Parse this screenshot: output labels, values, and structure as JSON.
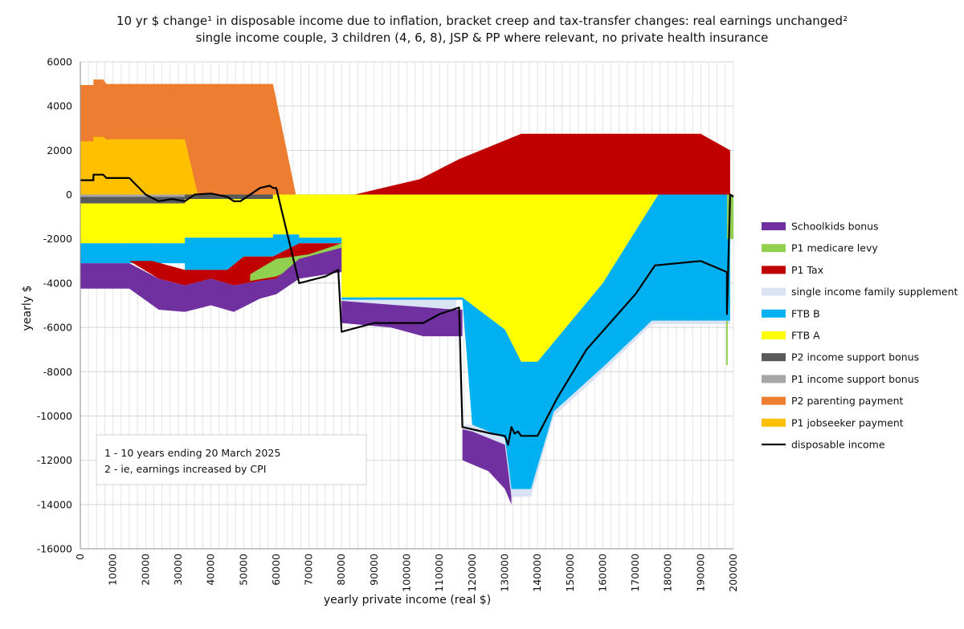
{
  "chart_data": {
    "type": "area",
    "title_line1": "10 yr $ change¹ in disposable income due to inflation, bracket creep and tax-transfer changes: real earnings unchanged²",
    "title_line2": "single income couple, 3 children (4, 6, 8), JSP & PP where relevant, no private health insurance",
    "xlabel": "yearly private income (real $)",
    "ylabel": "yearly $",
    "xlim": [
      0,
      200000
    ],
    "ylim": [
      -16000,
      6000
    ],
    "x_ticks": [
      "0",
      "10000",
      "20000",
      "30000",
      "40000",
      "50000",
      "60000",
      "70000",
      "80000",
      "90000",
      "100000",
      "110000",
      "120000",
      "130000",
      "140000",
      "150000",
      "160000",
      "170000",
      "180000",
      "190000",
      "200000"
    ],
    "y_ticks": [
      "6000",
      "4000",
      "2000",
      "0",
      "-2000",
      "-4000",
      "-6000",
      "-8000",
      "-10000",
      "-12000",
      "-14000",
      "-16000"
    ],
    "grid": true,
    "legend_position": "right",
    "notes": [
      "1 - 10 years ending 20 March 2025",
      "2 - ie, earnings increased by CPI"
    ],
    "series": [
      {
        "name": "Schoolkids bonus",
        "color": "#7030a0"
      },
      {
        "name": "P1 medicare levy",
        "color": "#92d050"
      },
      {
        "name": "P1 Tax",
        "color": "#c00000"
      },
      {
        "name": "single income family supplement",
        "color": "#dae3f3"
      },
      {
        "name": "FTB B",
        "color": "#00b0f0"
      },
      {
        "name": "FTB A",
        "color": "#ffff00"
      },
      {
        "name": "P2 income support bonus",
        "color": "#595959"
      },
      {
        "name": "P1 income support bonus",
        "color": "#a6a6a6"
      },
      {
        "name": "P2 parenting payment",
        "color": "#ed7d31"
      },
      {
        "name": "P1 jobseeker payment",
        "color": "#ffc000"
      },
      {
        "name": "disposable income",
        "color": "#000000"
      }
    ],
    "areas": [
      {
        "series": "P2 parenting payment",
        "upper": [
          [
            0,
            4950
          ],
          [
            4000,
            4950
          ],
          [
            4000,
            5200
          ],
          [
            7000,
            5200
          ],
          [
            8000,
            5000
          ],
          [
            59000,
            5000
          ],
          [
            66000,
            0
          ]
        ],
        "lower": [
          [
            0,
            0
          ],
          [
            66000,
            0
          ]
        ]
      },
      {
        "series": "P1 jobseeker payment",
        "upper": [
          [
            0,
            2400
          ],
          [
            4000,
            2400
          ],
          [
            4000,
            2600
          ],
          [
            7000,
            2600
          ],
          [
            8000,
            2500
          ],
          [
            32000,
            2500
          ],
          [
            36000,
            0
          ]
        ],
        "lower": [
          [
            0,
            0
          ],
          [
            36000,
            0
          ]
        ]
      },
      {
        "series": "P1 income support bonus",
        "upper": [
          [
            0,
            0
          ],
          [
            59000,
            0
          ]
        ],
        "lower": [
          [
            0,
            -100
          ],
          [
            59000,
            -100
          ]
        ]
      },
      {
        "series": "P2 income support bonus",
        "upper": [
          [
            0,
            -100
          ],
          [
            32000,
            -100
          ],
          [
            32000,
            0
          ],
          [
            59000,
            0
          ]
        ],
        "lower": [
          [
            0,
            -400
          ],
          [
            32000,
            -400
          ],
          [
            32000,
            -200
          ],
          [
            59000,
            -200
          ]
        ]
      },
      {
        "series": "FTB A",
        "upper": [
          [
            0,
            -400
          ],
          [
            32000,
            -400
          ],
          [
            32000,
            -200
          ],
          [
            59000,
            -200
          ],
          [
            59000,
            0
          ],
          [
            65000,
            0
          ],
          [
            80000,
            0
          ],
          [
            115000,
            0
          ],
          [
            177000,
            0
          ]
        ],
        "lower": [
          [
            0,
            -2200
          ],
          [
            32000,
            -2200
          ],
          [
            32000,
            -1950
          ],
          [
            59000,
            -1950
          ],
          [
            59000,
            -1800
          ],
          [
            67000,
            -1800
          ],
          [
            67000,
            -1950
          ],
          [
            80000,
            -1950
          ],
          [
            80000,
            -4650
          ],
          [
            117000,
            -4650
          ],
          [
            130000,
            -6100
          ],
          [
            135000,
            -7550
          ],
          [
            140000,
            -7550
          ],
          [
            160000,
            -4000
          ],
          [
            177000,
            0
          ]
        ]
      },
      {
        "series": "FTB B",
        "upper": [
          [
            0,
            -2200
          ],
          [
            32000,
            -2200
          ],
          [
            32000,
            -1950
          ],
          [
            59000,
            -1950
          ],
          [
            59000,
            -1800
          ],
          [
            67000,
            -1800
          ],
          [
            67000,
            -1950
          ],
          [
            80000,
            -1950
          ],
          [
            80000,
            -4650
          ],
          [
            117000,
            -4650
          ],
          [
            130000,
            -6100
          ],
          [
            135000,
            -7550
          ],
          [
            140000,
            -7550
          ],
          [
            160000,
            -4000
          ],
          [
            177000,
            0
          ],
          [
            199000,
            0
          ]
        ],
        "lower": [
          [
            0,
            -3100
          ],
          [
            32000,
            -3100
          ],
          [
            32000,
            -3400
          ],
          [
            45000,
            -3400
          ],
          [
            50000,
            -2800
          ],
          [
            59000,
            -2800
          ],
          [
            67000,
            -2200
          ],
          [
            80000,
            -2200
          ],
          [
            80000,
            -4750
          ],
          [
            117000,
            -4750
          ],
          [
            120000,
            -10400
          ],
          [
            130000,
            -11000
          ],
          [
            132000,
            -13300
          ],
          [
            138000,
            -13300
          ],
          [
            145000,
            -9800
          ],
          [
            160000,
            -7800
          ],
          [
            175000,
            -5700
          ],
          [
            199000,
            -5700
          ],
          [
            199000,
            0
          ]
        ]
      },
      {
        "series": "single income family supplement",
        "upper": [
          [
            80000,
            -4750
          ],
          [
            115000,
            -4750
          ],
          [
            117000,
            -10400
          ],
          [
            120000,
            -10400
          ],
          [
            130000,
            -11000
          ],
          [
            132000,
            -13300
          ],
          [
            138000,
            -13300
          ],
          [
            145000,
            -9800
          ],
          [
            160000,
            -7800
          ],
          [
            175000,
            -5700
          ],
          [
            199000,
            -5700
          ]
        ],
        "lower": [
          [
            80000,
            -4800
          ],
          [
            115000,
            -5200
          ],
          [
            117000,
            -10600
          ],
          [
            120000,
            -10700
          ],
          [
            130000,
            -11300
          ],
          [
            132000,
            -13650
          ],
          [
            138000,
            -13650
          ],
          [
            145000,
            -10000
          ],
          [
            160000,
            -8000
          ],
          [
            175000,
            -5850
          ],
          [
            199000,
            -5850
          ]
        ]
      },
      {
        "series": "P1 Tax",
        "upper": [
          [
            84000,
            0
          ],
          [
            104000,
            700
          ],
          [
            116000,
            1600
          ],
          [
            135000,
            2750
          ],
          [
            190000,
            2750
          ],
          [
            199000,
            2000
          ]
        ],
        "lower": [
          [
            84000,
            0
          ],
          [
            199000,
            0
          ]
        ]
      },
      {
        "series": "P1 Tax",
        "upper": [
          [
            15000,
            -3000
          ],
          [
            22000,
            -3000
          ],
          [
            32000,
            -3400
          ],
          [
            45000,
            -3400
          ],
          [
            50000,
            -2800
          ],
          [
            59000,
            -2800
          ],
          [
            67000,
            -2200
          ],
          [
            80000,
            -2200
          ]
        ],
        "lower": [
          [
            15000,
            -3000
          ],
          [
            24000,
            -3800
          ],
          [
            32000,
            -4100
          ],
          [
            40000,
            -3800
          ],
          [
            47000,
            -4100
          ],
          [
            55000,
            -3900
          ],
          [
            60000,
            -3800
          ],
          [
            67000,
            -2900
          ],
          [
            80000,
            -2400
          ]
        ]
      },
      {
        "series": "P1 medicare levy",
        "upper": [
          [
            52000,
            -3600
          ],
          [
            60000,
            -2900
          ],
          [
            70000,
            -2700
          ],
          [
            80000,
            -2200
          ]
        ],
        "lower": [
          [
            52000,
            -3900
          ],
          [
            60000,
            -3700
          ],
          [
            70000,
            -3000
          ],
          [
            80000,
            -2500
          ]
        ]
      },
      {
        "series": "P1 medicare levy",
        "upper": [
          [
            198000,
            0
          ],
          [
            200000,
            0
          ]
        ],
        "lower": [
          [
            198000,
            -2000
          ],
          [
            200000,
            -2000
          ]
        ]
      },
      {
        "series": "Schoolkids bonus",
        "upper": [
          [
            0,
            -3100
          ],
          [
            15000,
            -3100
          ],
          [
            24000,
            -3800
          ],
          [
            32000,
            -4100
          ],
          [
            40000,
            -3800
          ],
          [
            47000,
            -4100
          ],
          [
            55000,
            -3900
          ],
          [
            60000,
            -3800
          ],
          [
            67000,
            -2900
          ],
          [
            80000,
            -2400
          ]
        ],
        "lower": [
          [
            0,
            -4250
          ],
          [
            15000,
            -4250
          ],
          [
            24000,
            -5200
          ],
          [
            32000,
            -5300
          ],
          [
            40000,
            -5000
          ],
          [
            47000,
            -5300
          ],
          [
            55000,
            -4700
          ],
          [
            60000,
            -4500
          ],
          [
            67000,
            -3800
          ],
          [
            80000,
            -3500
          ]
        ]
      },
      {
        "series": "Schoolkids bonus",
        "upper": [
          [
            80000,
            -4800
          ],
          [
            115000,
            -5200
          ],
          [
            117000,
            -5200
          ]
        ],
        "lower": [
          [
            80000,
            -5800
          ],
          [
            95000,
            -6000
          ],
          [
            105000,
            -6400
          ],
          [
            117000,
            -6400
          ]
        ]
      },
      {
        "series": "Schoolkids bonus",
        "upper": [
          [
            117000,
            -10600
          ],
          [
            120000,
            -10700
          ],
          [
            130000,
            -11300
          ],
          [
            132000,
            -13650
          ]
        ],
        "lower": [
          [
            117000,
            -12000
          ],
          [
            125000,
            -12500
          ],
          [
            130000,
            -13300
          ],
          [
            132000,
            -14000
          ]
        ]
      }
    ],
    "lines": [
      {
        "series": "disposable income",
        "points": [
          [
            0,
            650
          ],
          [
            4000,
            650
          ],
          [
            4000,
            900
          ],
          [
            7000,
            900
          ],
          [
            8000,
            750
          ],
          [
            15000,
            750
          ],
          [
            20000,
            0
          ],
          [
            24000,
            -300
          ],
          [
            28000,
            -200
          ],
          [
            32000,
            -300
          ],
          [
            35000,
            0
          ],
          [
            40000,
            50
          ],
          [
            45000,
            -100
          ],
          [
            47000,
            -300
          ],
          [
            49000,
            -300
          ],
          [
            55000,
            300
          ],
          [
            58000,
            400
          ],
          [
            59000,
            300
          ],
          [
            60000,
            300
          ],
          [
            67000,
            -4000
          ],
          [
            75000,
            -3700
          ],
          [
            79000,
            -3400
          ],
          [
            80000,
            -6200
          ],
          [
            90000,
            -5800
          ],
          [
            105000,
            -5800
          ],
          [
            110000,
            -5400
          ],
          [
            116000,
            -5100
          ],
          [
            117000,
            -10500
          ],
          [
            126000,
            -10800
          ],
          [
            130000,
            -10900
          ],
          [
            131000,
            -11300
          ],
          [
            132000,
            -10500
          ],
          [
            133000,
            -10800
          ],
          [
            134000,
            -10700
          ],
          [
            135000,
            -10900
          ],
          [
            140000,
            -10900
          ],
          [
            146000,
            -9200
          ],
          [
            155000,
            -7000
          ],
          [
            170000,
            -4500
          ],
          [
            176000,
            -3200
          ],
          [
            190000,
            -3000
          ],
          [
            198000,
            -3500
          ],
          [
            198000,
            -5400
          ],
          [
            199000,
            0
          ],
          [
            200000,
            -100
          ]
        ]
      },
      {
        "series": "P1 medicare levy",
        "points": [
          [
            198000,
            -5700
          ],
          [
            198000,
            -7700
          ]
        ]
      }
    ]
  }
}
